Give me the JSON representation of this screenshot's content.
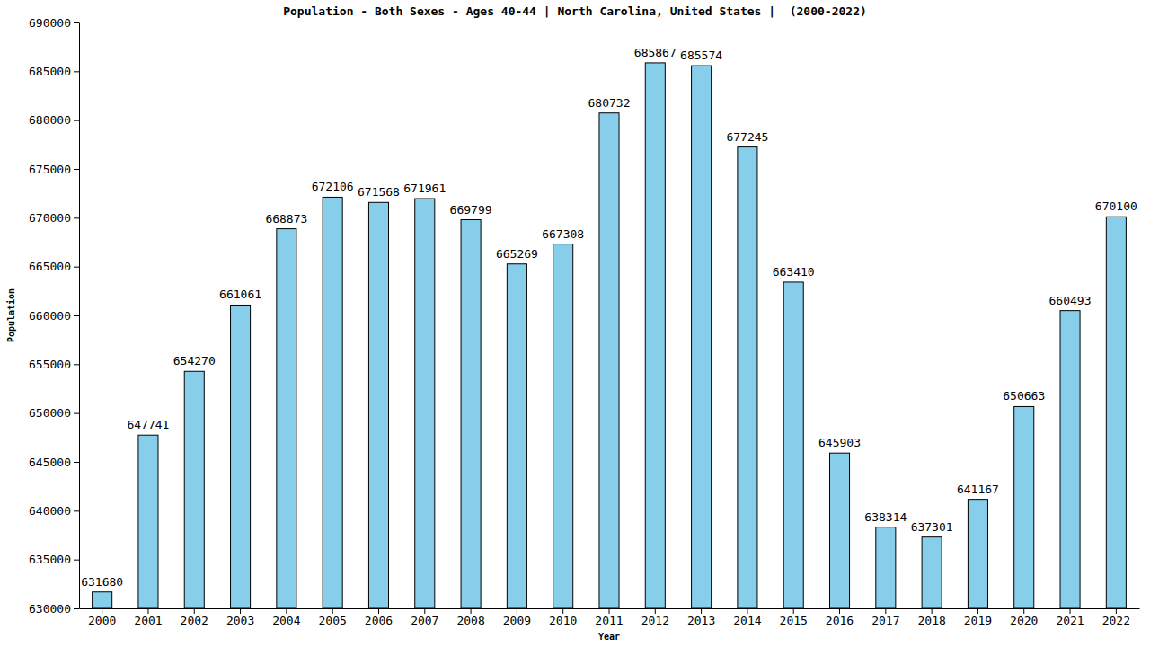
{
  "chart_data": {
    "type": "bar",
    "title": "Population - Both Sexes - Ages 40-44 | North Carolina, United States |  (2000-2022)",
    "x_label": "Year",
    "y_label": "Population",
    "categories": [
      "2000",
      "2001",
      "2002",
      "2003",
      "2004",
      "2005",
      "2006",
      "2007",
      "2008",
      "2009",
      "2010",
      "2011",
      "2012",
      "2013",
      "2014",
      "2015",
      "2016",
      "2017",
      "2018",
      "2019",
      "2020",
      "2021",
      "2022"
    ],
    "values": [
      631680,
      647741,
      654270,
      661061,
      668873,
      672106,
      671568,
      671961,
      669799,
      665269,
      667308,
      680732,
      685867,
      685574,
      677245,
      663410,
      645903,
      638314,
      637301,
      641167,
      650663,
      660493,
      670100
    ],
    "color": "#87ceeb",
    "ylim": [
      630000,
      690000
    ],
    "yticks": [
      630000,
      635000,
      640000,
      645000,
      650000,
      655000,
      660000,
      665000,
      670000,
      675000,
      680000,
      685000,
      690000
    ],
    "grid": false,
    "data_labels": true
  }
}
